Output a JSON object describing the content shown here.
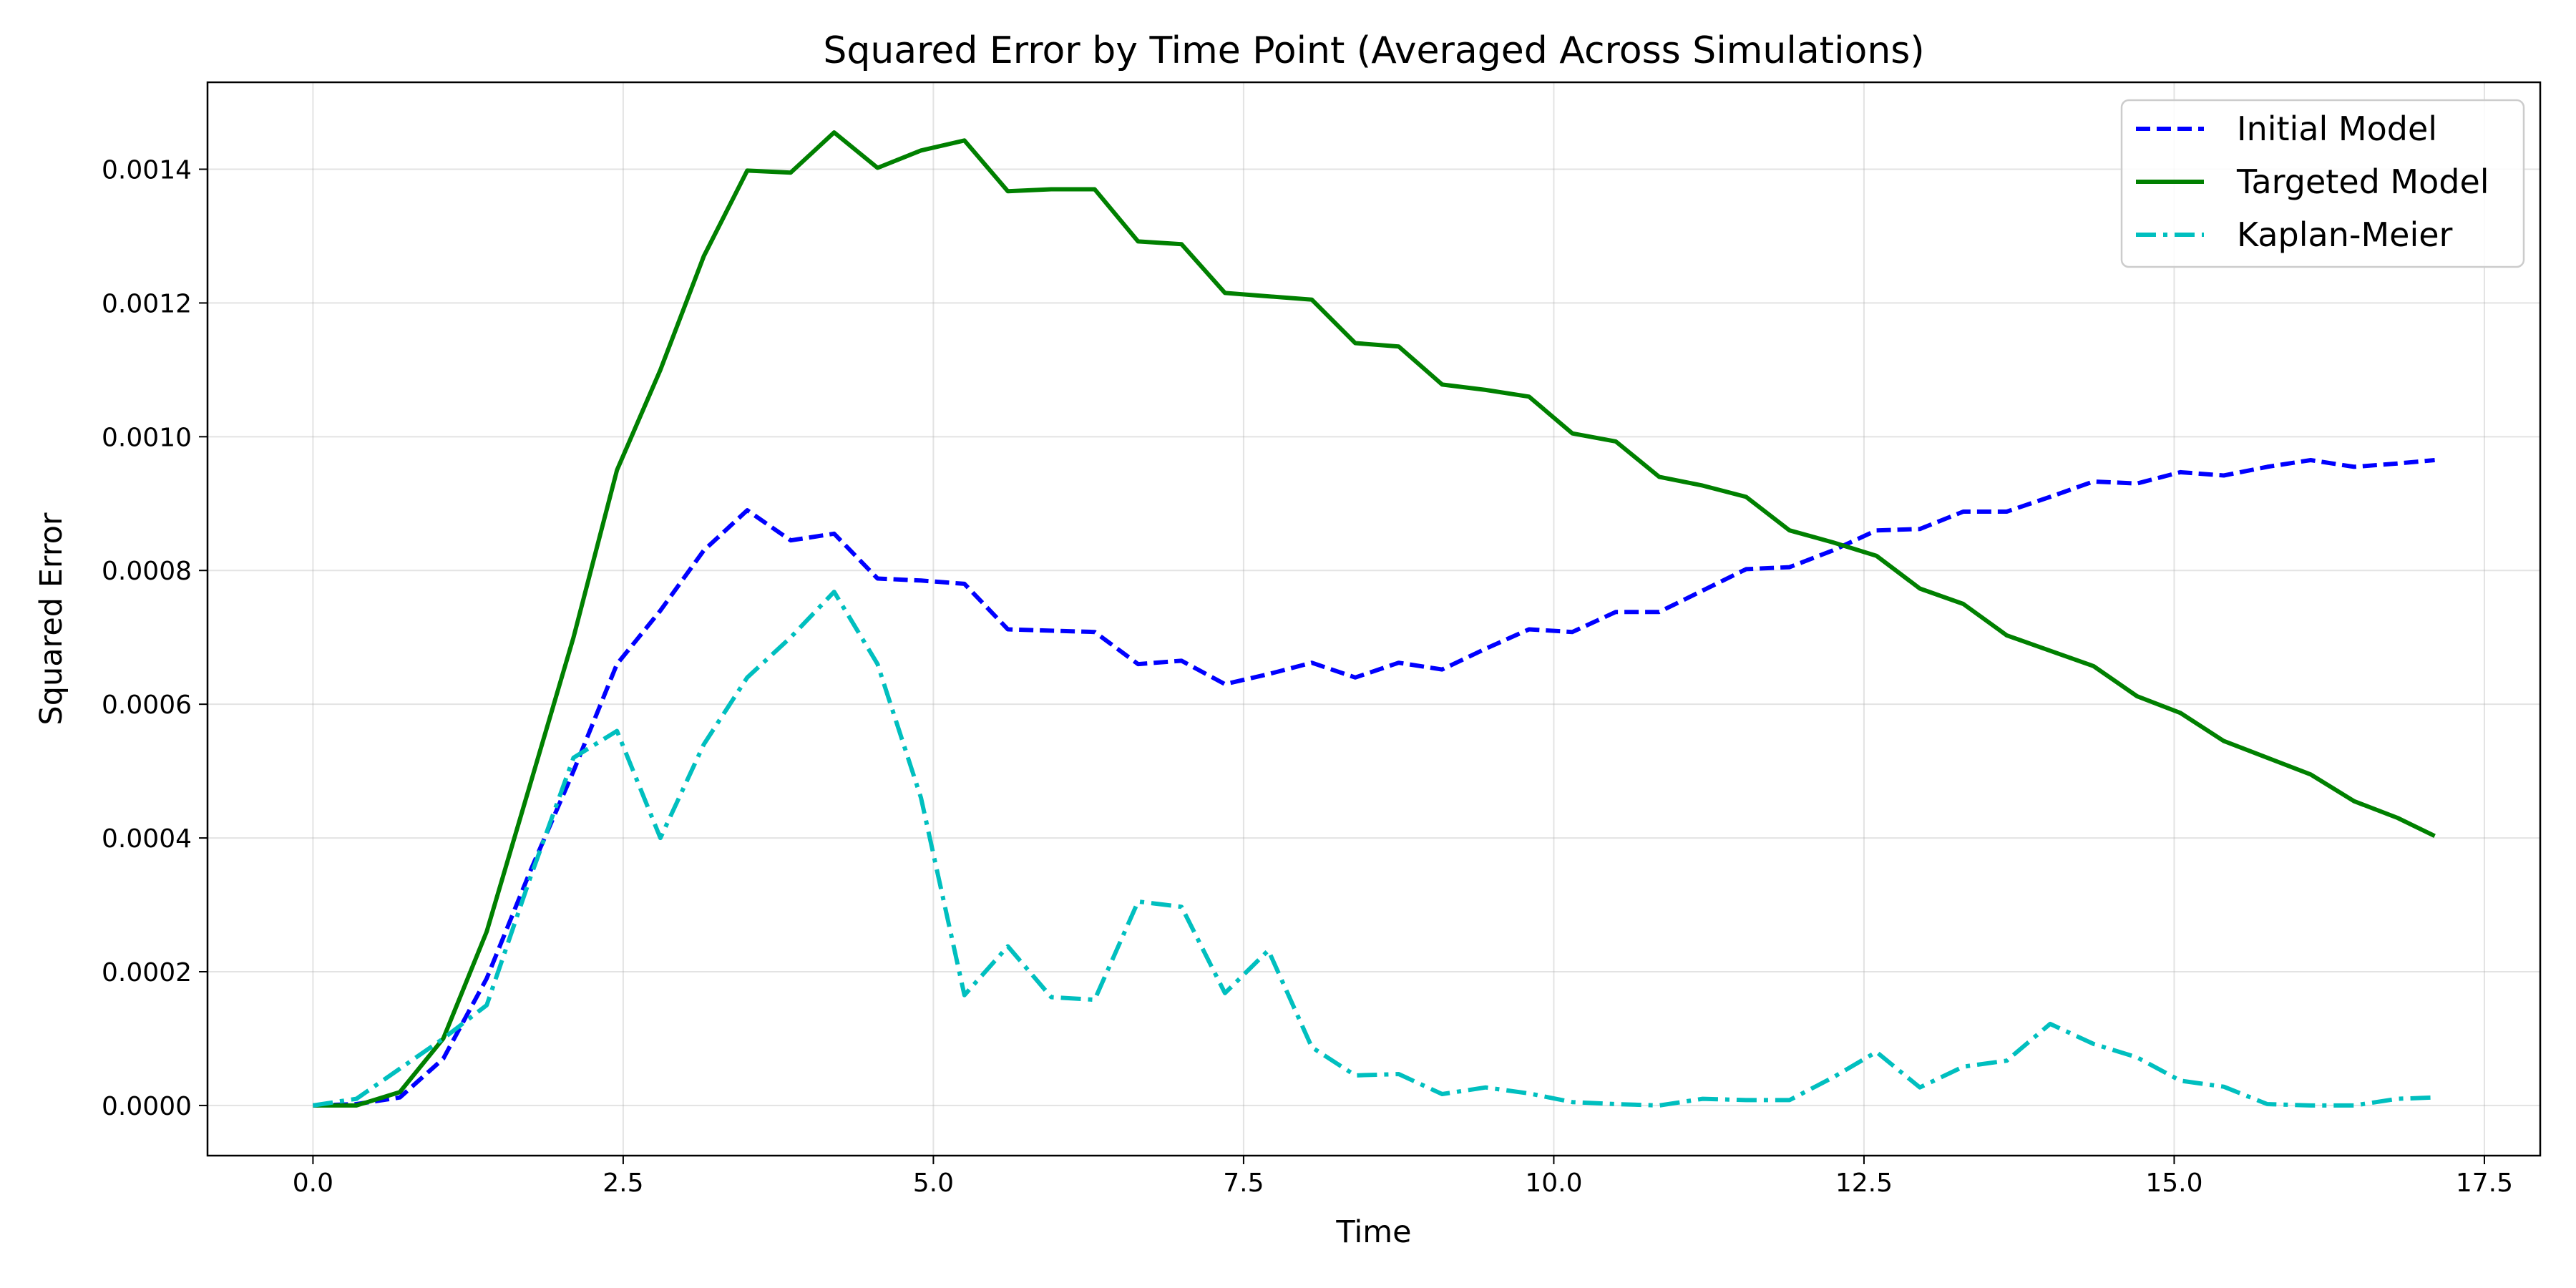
{
  "chart_data": {
    "type": "line",
    "title": "Squared Error by Time Point (Averaged Across Simulations)",
    "xlabel": "Time",
    "ylabel": "Squared Error",
    "xlim": [
      -0.85,
      17.95
    ],
    "ylim": [
      -7.5e-05,
      0.00153
    ],
    "xticks": [
      0.0,
      2.5,
      5.0,
      7.5,
      10.0,
      12.5,
      15.0,
      17.5
    ],
    "xtick_labels": [
      "0.0",
      "2.5",
      "5.0",
      "7.5",
      "10.0",
      "12.5",
      "15.0",
      "17.5"
    ],
    "yticks": [
      0.0,
      0.0002,
      0.0004,
      0.0006,
      0.0008,
      0.001,
      0.0012,
      0.0014
    ],
    "ytick_labels": [
      "0.0000",
      "0.0002",
      "0.0004",
      "0.0006",
      "0.0008",
      "0.0010",
      "0.0012",
      "0.0014"
    ],
    "grid": true,
    "legend_position": "top-right",
    "x": [
      0.0,
      0.35,
      0.7,
      1.05,
      1.4,
      1.75,
      2.1,
      2.45,
      2.8,
      3.15,
      3.5,
      3.85,
      4.2,
      4.55,
      4.9,
      5.25,
      5.6,
      5.95,
      6.3,
      6.65,
      7.0,
      7.35,
      7.7,
      8.05,
      8.4,
      8.75,
      9.1,
      9.45,
      9.8,
      10.15,
      10.5,
      10.85,
      11.2,
      11.55,
      11.9,
      12.25,
      12.6,
      12.95,
      13.3,
      13.65,
      14.0,
      14.35,
      14.7,
      15.05,
      15.4,
      15.75,
      16.1,
      16.45,
      16.8,
      17.1
    ],
    "series": [
      {
        "name": "Initial Model",
        "color": "#0000ff",
        "style": "dashed",
        "values": [
          0.0,
          2e-06,
          1.2e-05,
          7e-05,
          0.00019,
          0.00035,
          0.0005,
          0.00066,
          0.00074,
          0.00083,
          0.00089,
          0.000845,
          0.000855,
          0.000788,
          0.000785,
          0.00078,
          0.000712,
          0.00071,
          0.000708,
          0.00066,
          0.000665,
          0.00063,
          0.000645,
          0.000662,
          0.00064,
          0.000662,
          0.000652,
          0.000683,
          0.000712,
          0.000708,
          0.000738,
          0.000738,
          0.00077,
          0.000802,
          0.000805,
          0.00083,
          0.00086,
          0.000862,
          0.000888,
          0.000888,
          0.00091,
          0.000933,
          0.00093,
          0.000947,
          0.000942,
          0.000955,
          0.000965,
          0.000955,
          0.00096,
          0.000965
        ]
      },
      {
        "name": "Targeted Model",
        "color": "#008000",
        "style": "solid",
        "values": [
          0.0,
          0.0,
          2e-05,
          0.0001,
          0.00026,
          0.00048,
          0.0007,
          0.00095,
          0.0011,
          0.00127,
          0.001398,
          0.001395,
          0.001455,
          0.001402,
          0.001428,
          0.001443,
          0.001367,
          0.00137,
          0.00137,
          0.001292,
          0.001288,
          0.001215,
          0.00121,
          0.001205,
          0.00114,
          0.001135,
          0.001078,
          0.00107,
          0.00106,
          0.001005,
          0.000993,
          0.00094,
          0.000927,
          0.00091,
          0.00086,
          0.000842,
          0.000822,
          0.000773,
          0.00075,
          0.000703,
          0.00068,
          0.000657,
          0.000612,
          0.000587,
          0.000545,
          0.00052,
          0.000495,
          0.000455,
          0.00043,
          0.000403
        ]
      },
      {
        "name": "Kaplan-Meier",
        "color": "#00bfbf",
        "style": "dashdot",
        "values": [
          0.0,
          1e-05,
          5.5e-05,
          0.0001,
          0.00015,
          0.00034,
          0.00052,
          0.00056,
          0.0004,
          0.00054,
          0.00064,
          0.0007,
          0.000768,
          0.00066,
          0.00046,
          0.000165,
          0.000238,
          0.000162,
          0.000158,
          0.000305,
          0.000297,
          0.000168,
          0.000232,
          8.7e-05,
          4.5e-05,
          4.7e-05,
          1.7e-05,
          2.7e-05,
          1.8e-05,
          5e-06,
          2e-06,
          0.0,
          1e-05,
          8e-06,
          8e-06,
          4.2e-05,
          8e-05,
          2.7e-05,
          5.8e-05,
          6.7e-05,
          0.000122,
          9.2e-05,
          7.2e-05,
          3.7e-05,
          2.8e-05,
          2e-06,
          0.0,
          0.0,
          1e-05,
          1.2e-05
        ]
      }
    ]
  }
}
